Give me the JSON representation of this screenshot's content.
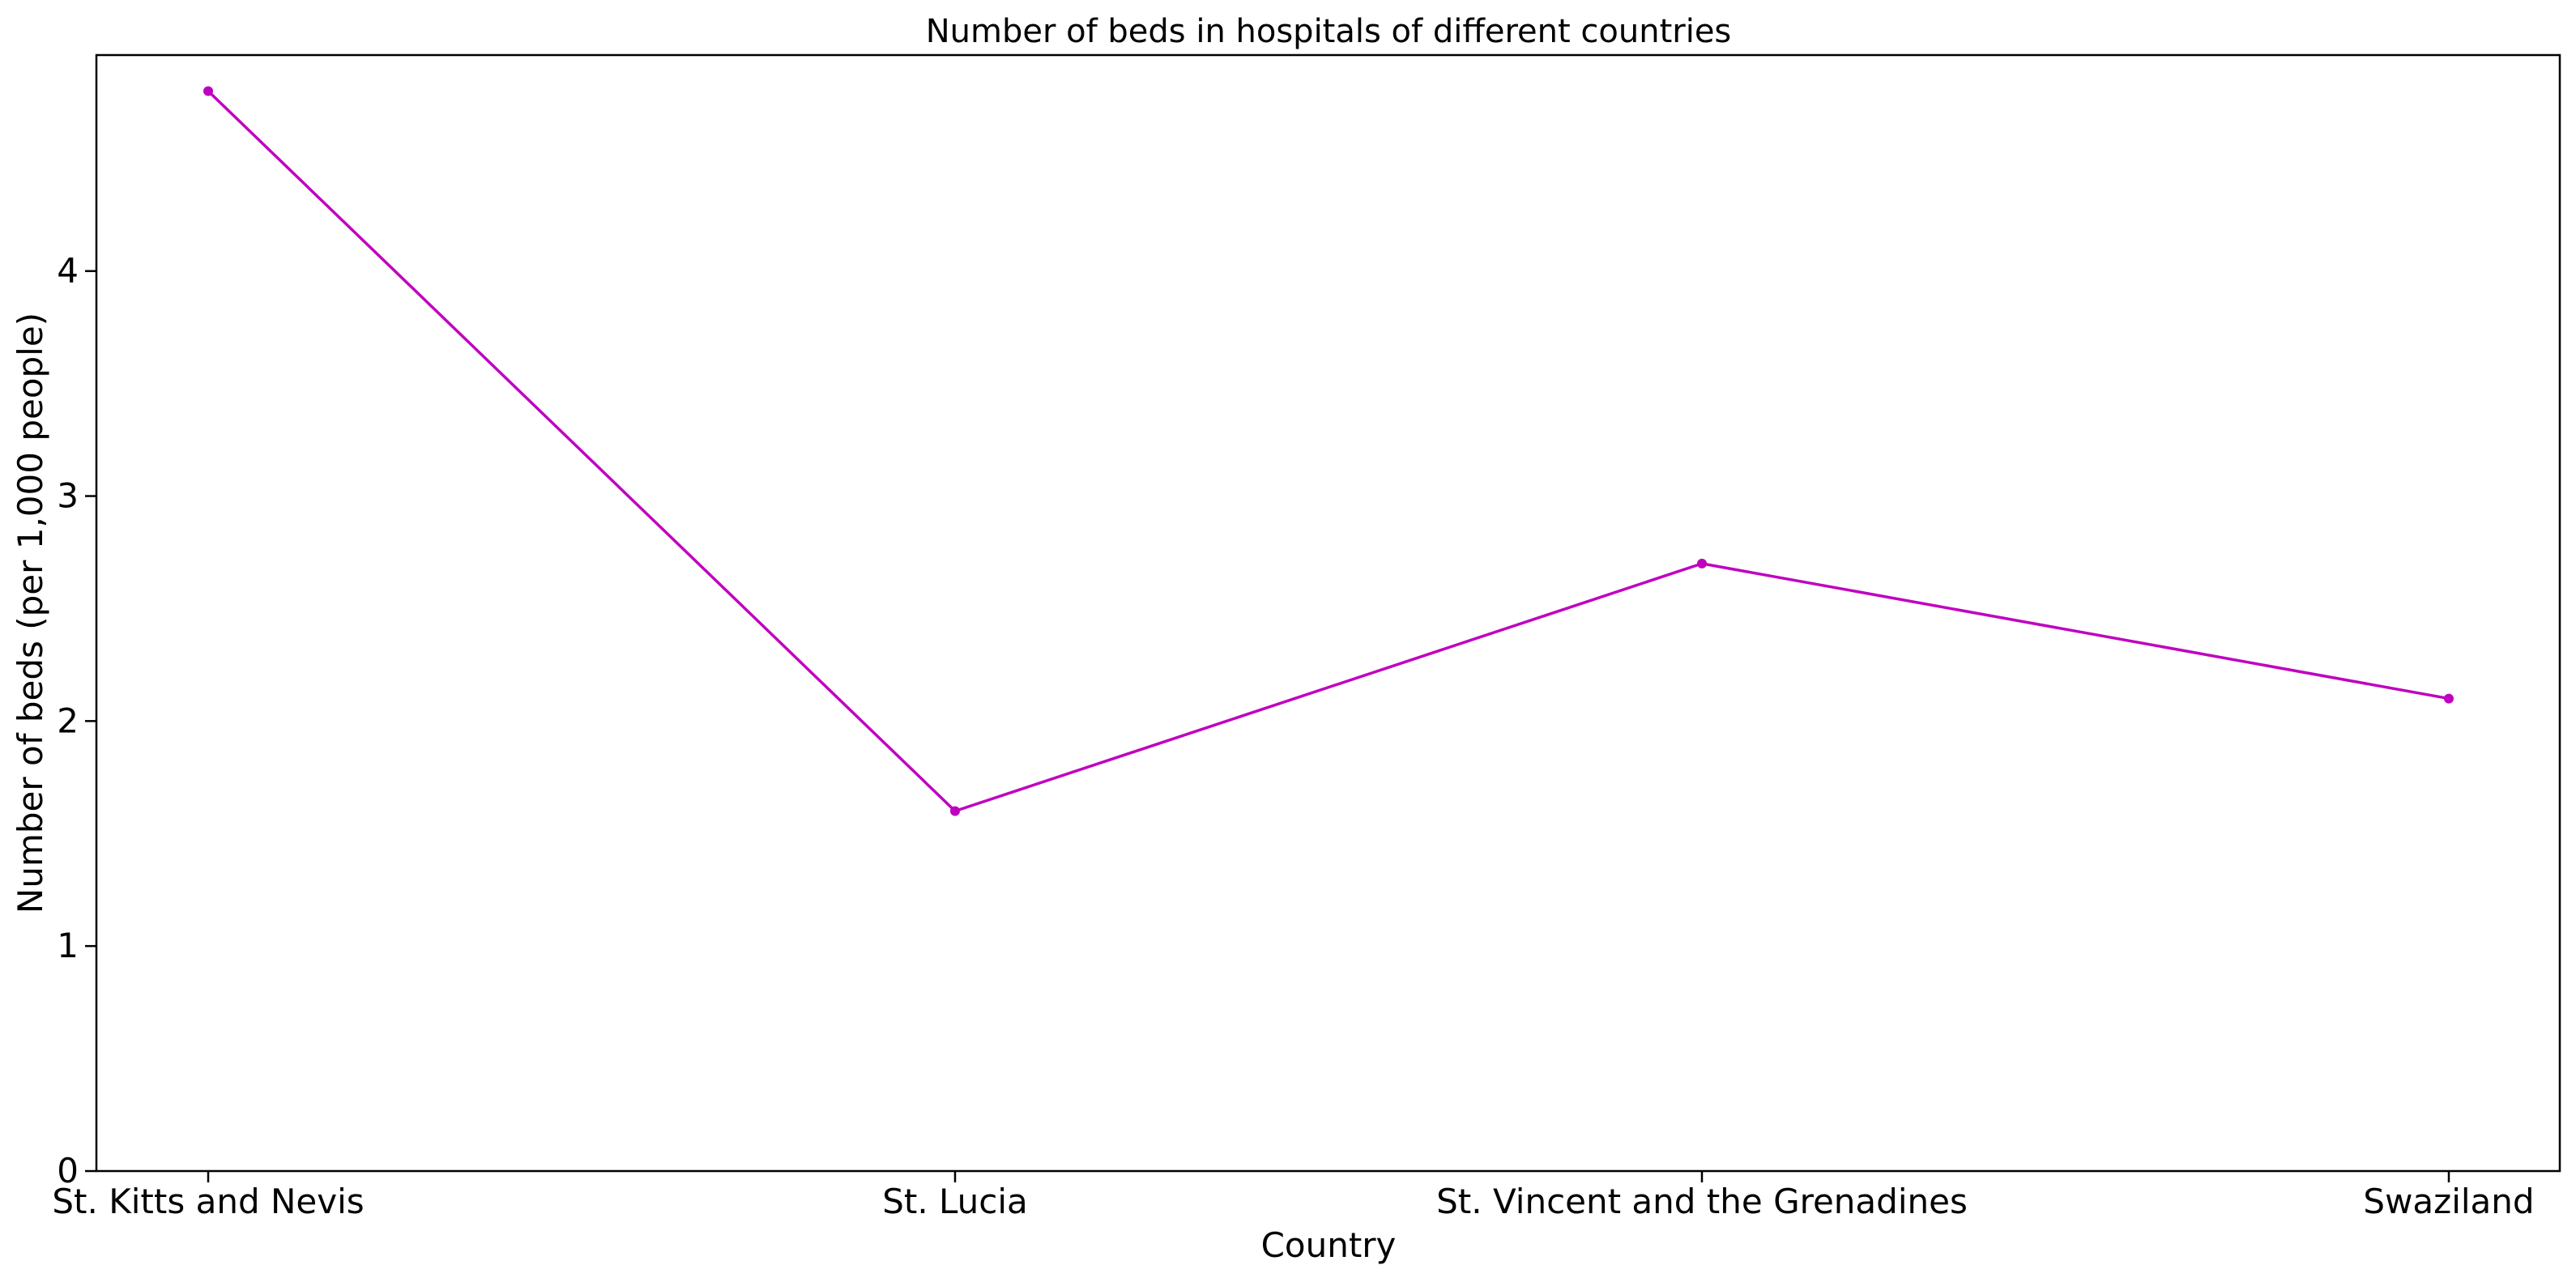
{
  "chart_data": {
    "type": "line",
    "title": "Number of beds in hospitals of different countries",
    "xlabel": "Country",
    "ylabel": "Number of beds (per 1,000 people)",
    "categories": [
      "St. Kitts and Nevis",
      "St. Lucia",
      "St. Vincent and the Grenadines",
      "Swaziland"
    ],
    "series": [
      {
        "values": [
          4.8,
          1.6,
          2.7,
          2.1
        ]
      }
    ],
    "ylim": [
      0,
      4.96
    ],
    "yticks": [
      0,
      1,
      2,
      3,
      4
    ],
    "grid": false,
    "legend": "none",
    "line_color": "#c000c0"
  }
}
